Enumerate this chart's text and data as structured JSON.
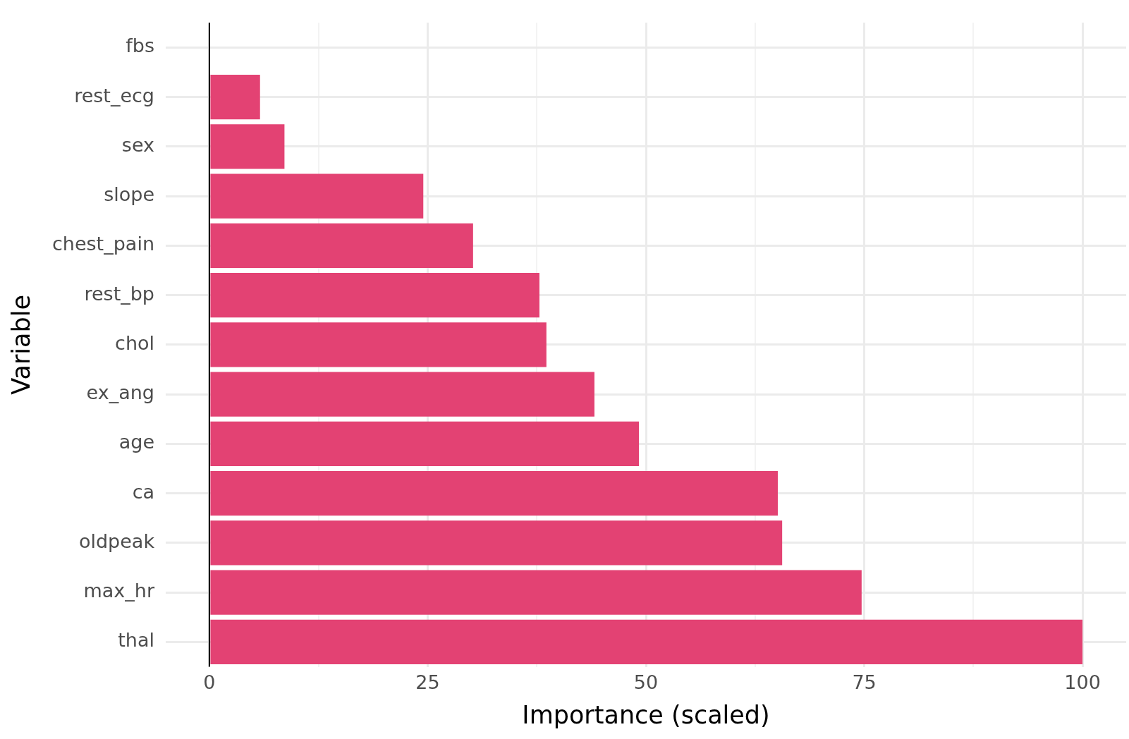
{
  "chart_data": {
    "type": "bar",
    "orientation": "horizontal",
    "xlabel": "Importance (scaled)",
    "ylabel": "Variable",
    "categories": [
      "fbs",
      "rest_ecg",
      "sex",
      "slope",
      "chest_pain",
      "rest_bp",
      "chol",
      "ex_ang",
      "age",
      "ca",
      "oldpeak",
      "max_hr",
      "thal"
    ],
    "values": [
      0,
      5.8,
      8.6,
      24.5,
      30.2,
      37.8,
      38.6,
      44.1,
      49.2,
      65.1,
      65.6,
      74.7,
      100
    ],
    "color": "#e34273",
    "xlim": [
      -5,
      105
    ],
    "xticks": [
      0,
      {
        "value": 12.5,
        "label": null
      },
      25,
      {
        "value": 37.5,
        "label": null
      },
      50,
      {
        "value": 62.5,
        "label": null
      },
      75,
      {
        "value": 87.5,
        "label": null
      },
      100
    ],
    "grid": true,
    "ref_lines": [
      {
        "axis": "x",
        "value": 0,
        "color": "#000000"
      }
    ]
  }
}
